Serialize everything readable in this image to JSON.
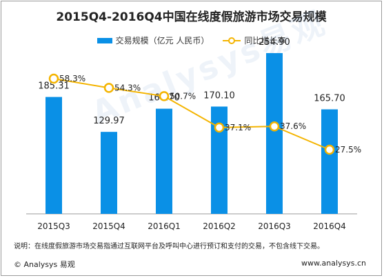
{
  "chart_data": {
    "type": "bar",
    "title": "2015Q4-2016Q4中国在线度假旅游市场交易规模",
    "categories": [
      "2015Q3",
      "2015Q4",
      "2016Q1",
      "2016Q2",
      "2016Q3",
      "2016Q4"
    ],
    "series": [
      {
        "name": "交易规模（亿元 人民币）",
        "type": "bar",
        "values": [
          185.31,
          129.97,
          166.7,
          170.1,
          254.9,
          165.7
        ],
        "value_labels": [
          "185.31",
          "129.97",
          "166.70",
          "170.10",
          "254.90",
          "165.70"
        ]
      },
      {
        "name": "同比增长率",
        "type": "line",
        "values": [
          58.3,
          54.3,
          50.7,
          37.1,
          37.6,
          27.5
        ],
        "value_labels": [
          "58.3%",
          "54.3%",
          "50.7%",
          "37.1%",
          "37.6%",
          "27.5%"
        ]
      }
    ],
    "grid": false,
    "legend": "top-center"
  },
  "colors": {
    "bar": "#0a90e6",
    "line": "#f4b400"
  },
  "note": "说明：在线度假旅游市场交易指通过互联网平台及呼叫中心进行预订和支付的交易，不包含线下交易。",
  "brand_left": "© Analysys 易观",
  "brand_right": "www.analysys.cn",
  "watermark": "Analysys易观"
}
